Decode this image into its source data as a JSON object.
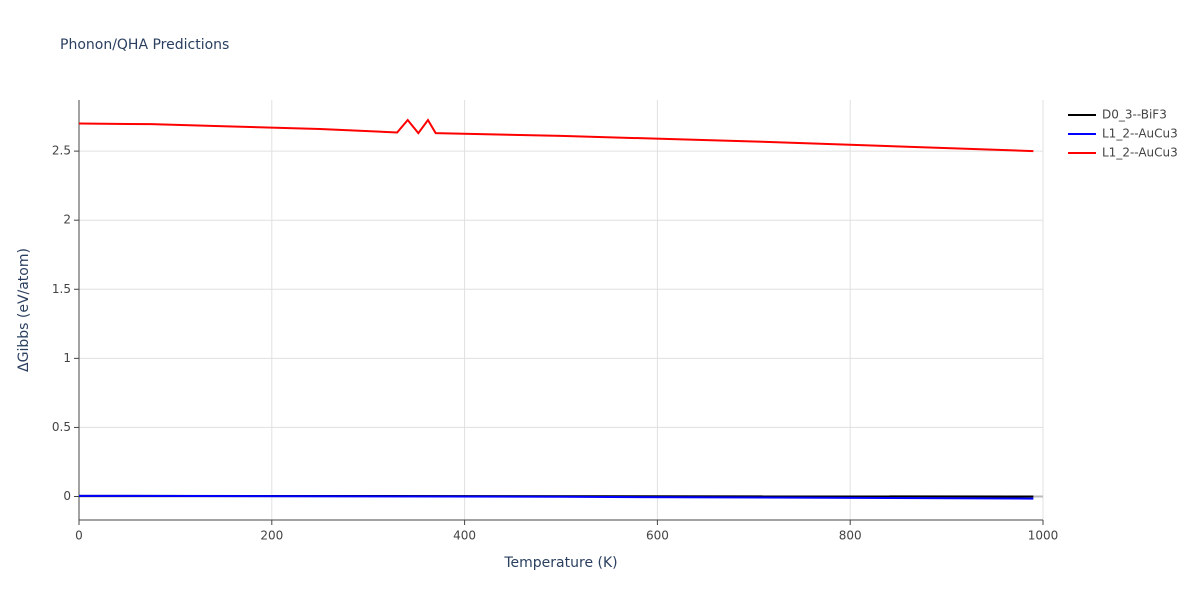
{
  "chart_data": {
    "type": "line",
    "title": "Phonon/QHA Predictions",
    "x_label": "Temperature (K)",
    "y_label": "ΔGibbs (eV/atom)",
    "xlim": [
      0,
      1000
    ],
    "xticks": [
      0,
      200,
      400,
      600,
      800,
      1000
    ],
    "ylim": [
      -0.17,
      2.87
    ],
    "yticks": [
      0,
      0.5,
      1,
      1.5,
      2,
      2.5
    ],
    "grid": true,
    "legend": "right",
    "series": [
      {
        "name": "D0_3--BiF3",
        "color": "#000000",
        "x": [
          0,
          990
        ],
        "values": [
          0.005,
          0.0
        ]
      },
      {
        "name": "L1_2--AuCu3",
        "color": "#0000ff",
        "x": [
          0,
          500,
          990
        ],
        "values": [
          0.005,
          -0.002,
          -0.015
        ]
      },
      {
        "name": "L1_2--AuCu3",
        "color": "#ff0000",
        "x": [
          0,
          75,
          150,
          250,
          330,
          341,
          352,
          362,
          370,
          500,
          700,
          990
        ],
        "values": [
          2.7,
          2.695,
          2.68,
          2.66,
          2.635,
          2.725,
          2.63,
          2.725,
          2.63,
          2.61,
          2.57,
          2.5
        ]
      }
    ]
  }
}
